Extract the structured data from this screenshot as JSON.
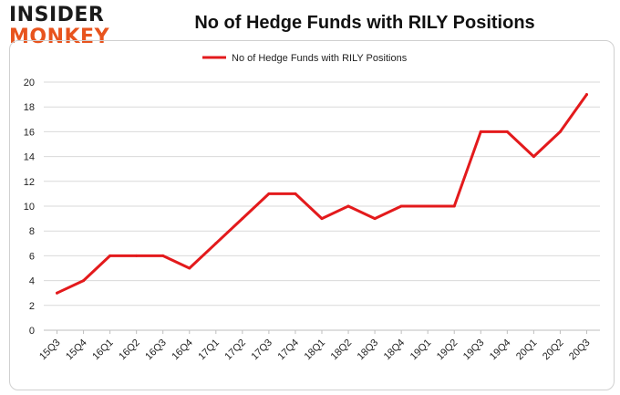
{
  "logo": {
    "line1": "INSIDER",
    "line2": "MONKEY"
  },
  "colors": {
    "series": "#e31a1c",
    "grid": "#d9d9d9",
    "logo_accent": "#e8541e"
  },
  "chart_data": {
    "type": "line",
    "title": "No of Hedge Funds with RILY Positions",
    "xlabel": "",
    "ylabel": "",
    "ylim": [
      0,
      20
    ],
    "yticks": [
      0,
      2,
      4,
      6,
      8,
      10,
      12,
      14,
      16,
      18,
      20
    ],
    "grid": true,
    "legend_position": "top-center",
    "categories": [
      "15Q3",
      "15Q4",
      "16Q1",
      "16Q2",
      "16Q3",
      "16Q4",
      "17Q1",
      "17Q2",
      "17Q3",
      "17Q4",
      "18Q1",
      "18Q2",
      "18Q3",
      "18Q4",
      "19Q1",
      "19Q2",
      "19Q3",
      "19Q4",
      "20Q1",
      "20Q2",
      "20Q3"
    ],
    "series": [
      {
        "name": "No of Hedge Funds with RILY Positions",
        "values": [
          3,
          4,
          6,
          6,
          6,
          5,
          7,
          9,
          11,
          11,
          9,
          10,
          9,
          10,
          10,
          10,
          16,
          16,
          14,
          16,
          19
        ]
      }
    ]
  }
}
